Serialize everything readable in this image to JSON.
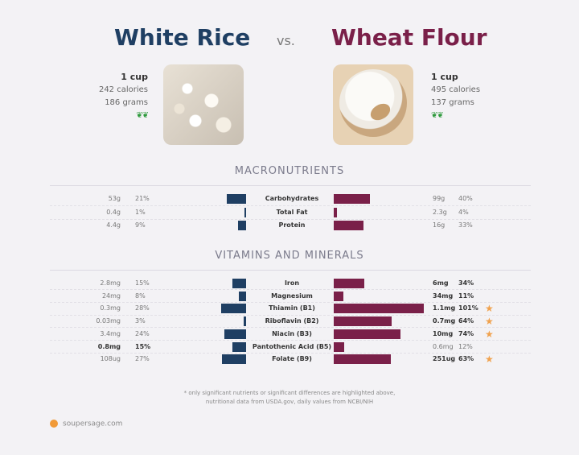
{
  "header": {
    "left_title": "White Rice",
    "vs": "vs.",
    "right_title": "Wheat Flour"
  },
  "left_food": {
    "serving": "1 cup",
    "calories": "242 calories",
    "grams": "186 grams",
    "image_icon": "rice-photo"
  },
  "right_food": {
    "serving": "1 cup",
    "calories": "495 calories",
    "grams": "137 grams",
    "image_icon": "flour-photo"
  },
  "leaf_icon": "plant-leaf-icon",
  "colors": {
    "left": "#1f3f63",
    "right": "#7a2049",
    "star": "#f0a24e",
    "brand": "#f19a38"
  },
  "macronutrients": {
    "title": "MACRONUTRIENTS",
    "rows": [
      {
        "name": "Carbohydrates",
        "left_amount": "53g",
        "left_pct": "21%",
        "left_frac": 0.21,
        "right_amount": "99g",
        "right_pct": "40%",
        "right_frac": 0.4,
        "left_bold": false,
        "right_bold": false,
        "star": false
      },
      {
        "name": "Total Fat",
        "left_amount": "0.4g",
        "left_pct": "1%",
        "left_frac": 0.01,
        "right_amount": "2.3g",
        "right_pct": "4%",
        "right_frac": 0.04,
        "left_bold": false,
        "right_bold": false,
        "star": false
      },
      {
        "name": "Protein",
        "left_amount": "4.4g",
        "left_pct": "9%",
        "left_frac": 0.09,
        "right_amount": "16g",
        "right_pct": "33%",
        "right_frac": 0.33,
        "left_bold": false,
        "right_bold": false,
        "star": false
      }
    ]
  },
  "vitamins": {
    "title": "VITAMINS AND MINERALS",
    "rows": [
      {
        "name": "Iron",
        "left_amount": "2.8mg",
        "left_pct": "15%",
        "left_frac": 0.15,
        "right_amount": "6mg",
        "right_pct": "34%",
        "right_frac": 0.34,
        "left_bold": false,
        "right_bold": true,
        "star": false
      },
      {
        "name": "Magnesium",
        "left_amount": "24mg",
        "left_pct": "8%",
        "left_frac": 0.08,
        "right_amount": "34mg",
        "right_pct": "11%",
        "right_frac": 0.11,
        "left_bold": false,
        "right_bold": true,
        "star": false
      },
      {
        "name": "Thiamin (B1)",
        "left_amount": "0.3mg",
        "left_pct": "28%",
        "left_frac": 0.28,
        "right_amount": "1.1mg",
        "right_pct": "101%",
        "right_frac": 1.01,
        "left_bold": false,
        "right_bold": true,
        "star": true
      },
      {
        "name": "Riboflavin (B2)",
        "left_amount": "0.03mg",
        "left_pct": "3%",
        "left_frac": 0.03,
        "right_amount": "0.7mg",
        "right_pct": "64%",
        "right_frac": 0.64,
        "left_bold": false,
        "right_bold": true,
        "star": true
      },
      {
        "name": "Niacin (B3)",
        "left_amount": "3.4mg",
        "left_pct": "24%",
        "left_frac": 0.24,
        "right_amount": "10mg",
        "right_pct": "74%",
        "right_frac": 0.74,
        "left_bold": false,
        "right_bold": true,
        "star": true
      },
      {
        "name": "Pantothenic Acid (B5)",
        "left_amount": "0.8mg",
        "left_pct": "15%",
        "left_frac": 0.15,
        "right_amount": "0.6mg",
        "right_pct": "12%",
        "right_frac": 0.12,
        "left_bold": true,
        "right_bold": false,
        "star": false
      },
      {
        "name": "Folate (B9)",
        "left_amount": "108ug",
        "left_pct": "27%",
        "left_frac": 0.27,
        "right_amount": "251ug",
        "right_pct": "63%",
        "right_frac": 0.63,
        "left_bold": false,
        "right_bold": true,
        "star": true
      }
    ]
  },
  "footnote": {
    "line1": "* only significant nutrients or significant differences are highlighted above,",
    "line2": "nutritional data from USDA.gov, daily values from NCBI/NIH"
  },
  "brand": {
    "text": "soupersage.com",
    "icon": "soupersage-logo-icon"
  },
  "star_icon": "star-icon"
}
